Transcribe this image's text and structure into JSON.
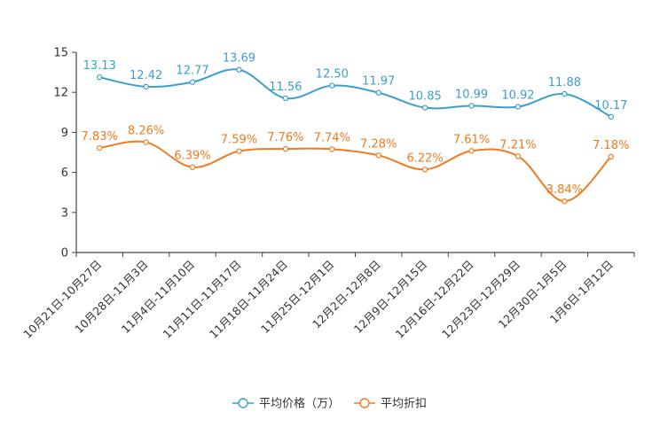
{
  "colors": {
    "series_price": "#3a9fcf",
    "series_discount": "#f07a1e",
    "axis": "#444444",
    "grid": "#dddddd",
    "background": "#ffffff"
  },
  "chart_data": {
    "type": "line",
    "title": "",
    "xlabel": "",
    "ylabel": "",
    "ylim": [
      0,
      15
    ],
    "yticks": [
      "0",
      "3",
      "6",
      "9",
      "12",
      "15"
    ],
    "categories": [
      "10月21日-10月27日",
      "10月28日-11月3日",
      "11月4日-11月10日",
      "11月11日-11月17日",
      "11月18日-11月24日",
      "11月25日-12月1日",
      "12月2日-12月8日",
      "12月9日-12月15日",
      "12月16日-12月22日",
      "12月23日-12月29日",
      "12月30日-1月5日",
      "1月6日-1月12日"
    ],
    "series": [
      {
        "name": "平均价格（万）",
        "values": [
          13.13,
          12.42,
          12.77,
          13.69,
          11.56,
          12.5,
          11.97,
          10.85,
          10.99,
          10.92,
          11.88,
          10.17
        ],
        "labels": [
          "13.13",
          "12.42",
          "12.77",
          "13.69",
          "11.56",
          "12.50",
          "11.97",
          "10.85",
          "10.99",
          "10.92",
          "11.88",
          "10.17"
        ]
      },
      {
        "name": "平均折扣",
        "values": [
          7.83,
          8.26,
          6.39,
          7.59,
          7.76,
          7.74,
          7.28,
          6.22,
          7.61,
          7.21,
          3.84,
          7.18
        ],
        "labels": [
          "7.83%",
          "8.26%",
          "6.39%",
          "7.59%",
          "7.76%",
          "7.74%",
          "7.28%",
          "6.22%",
          "7.61%",
          "7.21%",
          "3.84%",
          "7.18%"
        ]
      }
    ],
    "legend_position": "bottom-center",
    "grid": false
  }
}
